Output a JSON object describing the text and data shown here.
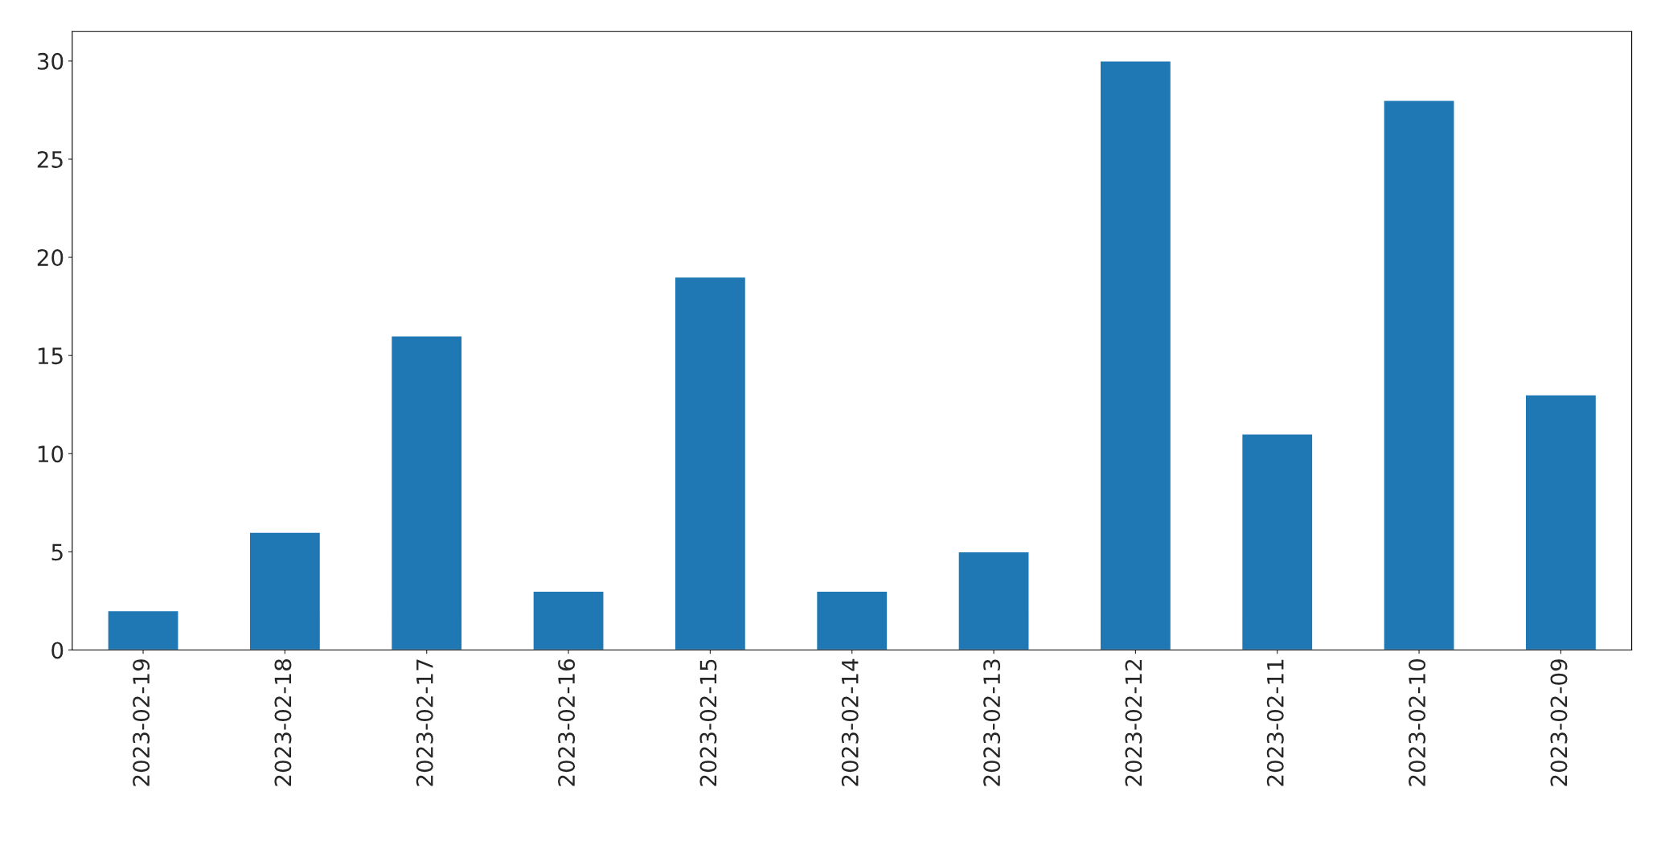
{
  "chart_data": {
    "type": "bar",
    "categories": [
      "2023-02-19",
      "2023-02-18",
      "2023-02-17",
      "2023-02-16",
      "2023-02-15",
      "2023-02-14",
      "2023-02-13",
      "2023-02-12",
      "2023-02-11",
      "2023-02-10",
      "2023-02-09"
    ],
    "values": [
      2,
      6,
      16,
      3,
      19,
      3,
      5,
      30,
      11,
      28,
      13
    ],
    "color": "#1f77b4",
    "ylim": [
      0,
      31.5
    ],
    "yticks": [
      0,
      5,
      10,
      15,
      20,
      25,
      30
    ],
    "grid": false,
    "legend": false
  }
}
